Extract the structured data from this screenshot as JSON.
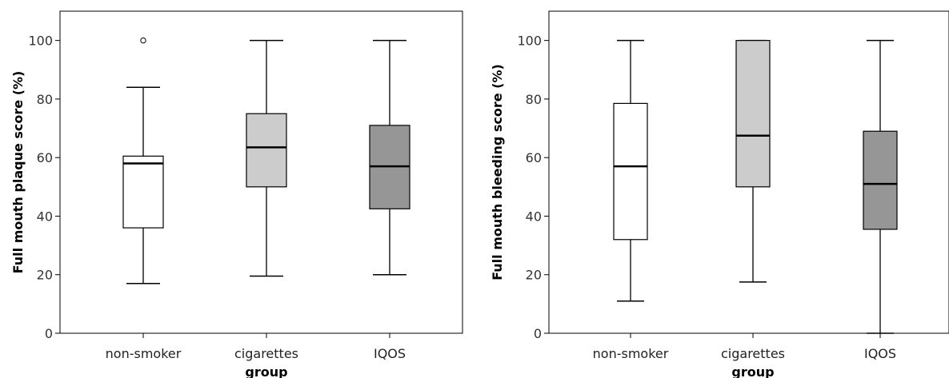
{
  "chart_data": [
    {
      "type": "boxplot",
      "xlabel": "group",
      "ylabel": "Full mouth plaque score (%)",
      "ylim": [
        0,
        110
      ],
      "yticks": [
        0,
        20,
        40,
        60,
        80,
        100
      ],
      "categories": [
        "non-smoker",
        "cigarettes",
        "IQOS"
      ],
      "boxes": [
        {
          "name": "non-smoker",
          "whisker_low": 17,
          "q1": 36,
          "median": 58,
          "q3": 60.5,
          "whisker_high": 84,
          "outliers": [
            100
          ],
          "fill": "#ffffff"
        },
        {
          "name": "cigarettes",
          "whisker_low": 19.5,
          "q1": 50,
          "median": 63.5,
          "q3": 75,
          "whisker_high": 100,
          "outliers": [],
          "fill": "#cccccc"
        },
        {
          "name": "IQOS",
          "whisker_low": 20,
          "q1": 42.5,
          "median": 57,
          "q3": 71,
          "whisker_high": 100,
          "outliers": [],
          "fill": "#969696"
        }
      ]
    },
    {
      "type": "boxplot",
      "xlabel": "group",
      "ylabel": "Full mouth bleeding score (%)",
      "ylim": [
        0,
        110
      ],
      "yticks": [
        0,
        20,
        40,
        60,
        80,
        100
      ],
      "categories": [
        "non-smoker",
        "cigarettes",
        "IQOS"
      ],
      "boxes": [
        {
          "name": "non-smoker",
          "whisker_low": 11,
          "q1": 32,
          "median": 57,
          "q3": 78.5,
          "whisker_high": 100,
          "outliers": [],
          "fill": "#ffffff"
        },
        {
          "name": "cigarettes",
          "whisker_low": 17.5,
          "q1": 50,
          "median": 67.5,
          "q3": 100,
          "whisker_high": 100,
          "outliers": [],
          "fill": "#cccccc"
        },
        {
          "name": "IQOS",
          "whisker_low": 0,
          "q1": 35.5,
          "median": 51,
          "q3": 69,
          "whisker_high": 100,
          "outliers": [],
          "fill": "#969696"
        }
      ]
    }
  ]
}
